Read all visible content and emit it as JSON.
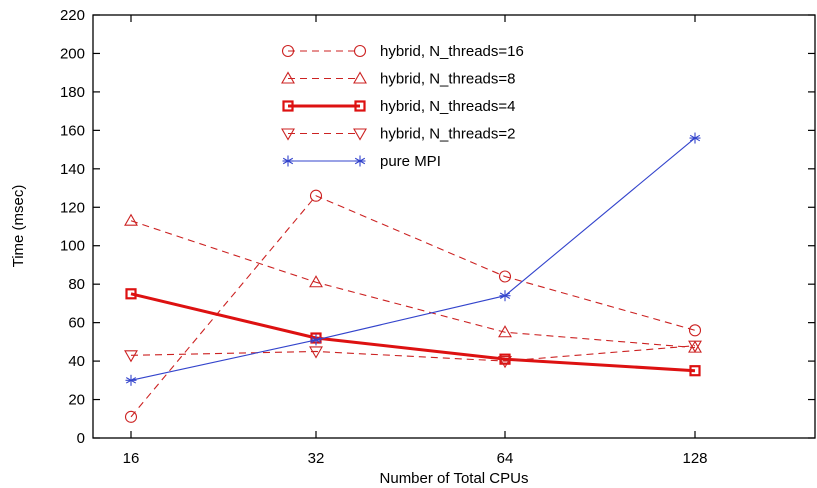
{
  "chart_data": {
    "type": "line",
    "xlabel": "Number of Total CPUs",
    "ylabel": "Time (msec)",
    "categories": [
      "16",
      "32",
      "64",
      "128"
    ],
    "ylim": [
      0,
      220
    ],
    "yticks": [
      0,
      20,
      40,
      60,
      80,
      100,
      120,
      140,
      160,
      180,
      200,
      220
    ],
    "grid": false,
    "legend_position": "top-center",
    "series": [
      {
        "name": "hybrid, N_threads=16",
        "values": [
          11,
          126,
          84,
          56
        ],
        "color": "#cc2222",
        "dash": "dashed",
        "marker": "circle",
        "bold": false
      },
      {
        "name": "hybrid, N_threads=8",
        "values": [
          113,
          81,
          55,
          47
        ],
        "color": "#cc2222",
        "dash": "dashed",
        "marker": "triangle-up",
        "bold": false
      },
      {
        "name": "hybrid, N_threads=4",
        "values": [
          75,
          52,
          41,
          35
        ],
        "color": "#dd1111",
        "dash": "solid",
        "marker": "square",
        "bold": true
      },
      {
        "name": "hybrid, N_threads=2",
        "values": [
          43,
          45,
          40,
          48
        ],
        "color": "#cc2222",
        "dash": "dashed",
        "marker": "triangle-down",
        "bold": false
      },
      {
        "name": "pure MPI",
        "values": [
          30,
          51,
          74,
          156
        ],
        "color": "#3344cc",
        "dash": "solid",
        "marker": "asterisk",
        "bold": false
      }
    ]
  }
}
